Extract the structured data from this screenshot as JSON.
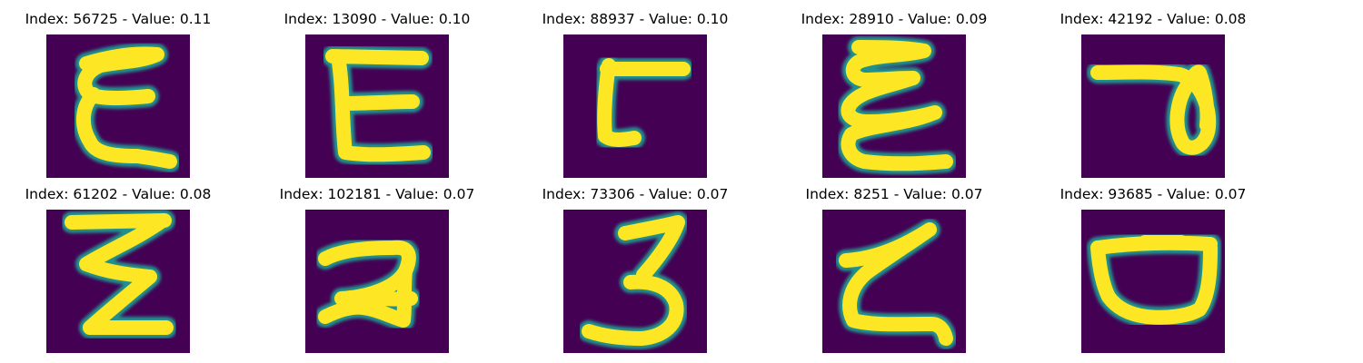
{
  "panels": [
    {
      "title": "Index: 56725 - Value: 0.11",
      "glyph": "E-curvy"
    },
    {
      "title": "Index: 13090 - Value: 0.10",
      "glyph": "E"
    },
    {
      "title": "Index: 88937 - Value: 0.10",
      "glyph": "L-hook"
    },
    {
      "title": "Index: 28910 - Value: 0.09",
      "glyph": "E-script"
    },
    {
      "title": "Index: 42192 - Value: 0.08",
      "glyph": "loop"
    },
    {
      "title": "Index: 61202 - Value: 0.08",
      "glyph": "zigzag"
    },
    {
      "title": "Index: 102181 - Value: 0.07",
      "glyph": "two"
    },
    {
      "title": "Index: 73306 - Value: 0.07",
      "glyph": "three"
    },
    {
      "title": "Index: 8251 - Value: 0.07",
      "glyph": "z-curve"
    },
    {
      "title": "Index: 93685 - Value: 0.07",
      "glyph": "bowl"
    }
  ],
  "colors": {
    "background": "#440154",
    "stroke_core": "#fde725",
    "stroke_edge": "#21918c"
  }
}
